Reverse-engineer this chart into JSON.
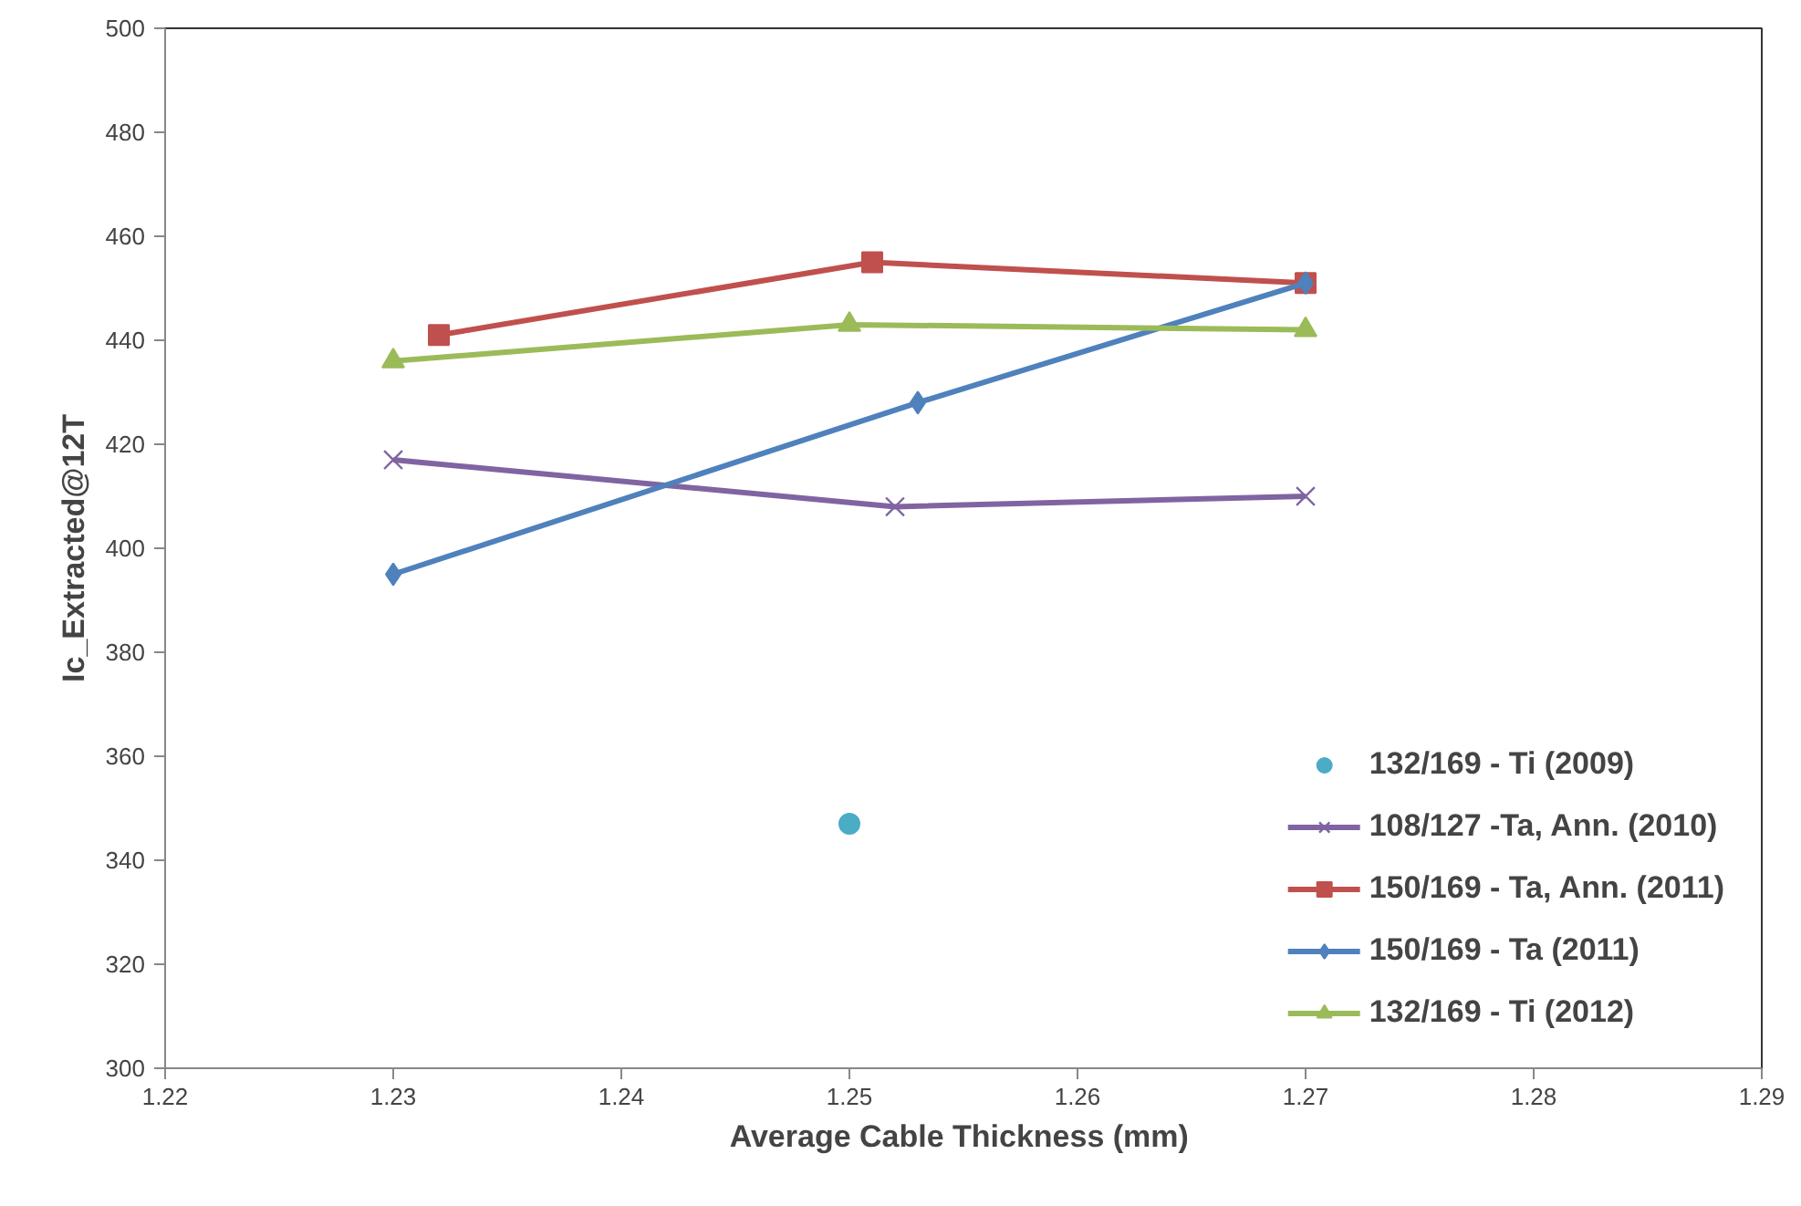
{
  "chart_data": {
    "type": "line",
    "xlabel": "Average  Cable Thickness (mm)",
    "ylabel": "Ic_Extracted@12T",
    "xlim": [
      1.22,
      1.29
    ],
    "xticks": [
      {
        "value": 1.22,
        "label": "1.22"
      },
      {
        "value": 1.23,
        "label": "1.23"
      },
      {
        "value": 1.24,
        "label": "1.24"
      },
      {
        "value": 1.25,
        "label": "1.25"
      },
      {
        "value": 1.26,
        "label": "1.26"
      },
      {
        "value": 1.27,
        "label": "1.27"
      },
      {
        "value": 1.28,
        "label": "1.28"
      },
      {
        "value": 1.29,
        "label": "1.29"
      }
    ],
    "ylim": [
      300,
      500
    ],
    "yticks": [
      300,
      320,
      340,
      360,
      380,
      400,
      420,
      440,
      460,
      480,
      500
    ],
    "grid": false,
    "legend": "bottom right",
    "series": [
      {
        "name": "132/169 - Ti (2009)",
        "type": "scatter",
        "marker": "circle",
        "color": "#4bacc6",
        "x": [
          1.25
        ],
        "values": [
          347
        ]
      },
      {
        "name": "108/127 -Ta, Ann. (2010)",
        "marker": "cross",
        "color": "#8064a2",
        "x": [
          1.23,
          1.252,
          1.27
        ],
        "values": [
          417,
          408,
          410
        ]
      },
      {
        "name": "150/169 - Ta, Ann. (2011)",
        "marker": "square",
        "color": "#c0504d",
        "x": [
          1.232,
          1.251,
          1.27
        ],
        "values": [
          441,
          455,
          451
        ]
      },
      {
        "name": "150/169 - Ta (2011)",
        "marker": "diamond",
        "color": "#4f81bd",
        "x": [
          1.23,
          1.253,
          1.27
        ],
        "values": [
          395,
          428,
          451
        ]
      },
      {
        "name": "132/169 - Ti (2012)",
        "marker": "triangle",
        "color": "#9bbb59",
        "x": [
          1.23,
          1.25,
          1.27
        ],
        "values": [
          436,
          443,
          442
        ]
      }
    ]
  }
}
